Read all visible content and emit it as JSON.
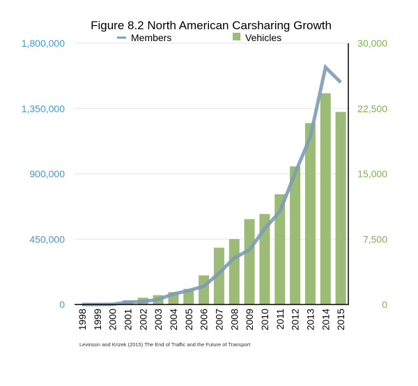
{
  "chart_data": {
    "type": "bar+line",
    "title": "Figure 8.2 North American Carsharing Growth",
    "categories": [
      "1998",
      "1999",
      "2000",
      "2001",
      "2002",
      "2003",
      "2004",
      "2005",
      "2006",
      "2007",
      "2008",
      "2009",
      "2010",
      "2011",
      "2012",
      "2013",
      "2014",
      "2015"
    ],
    "series": [
      {
        "name": "Members",
        "type": "line",
        "axis": "left",
        "color": "#7f9bb8",
        "values": [
          0,
          0,
          1000,
          16000,
          20000,
          35000,
          72000,
          96000,
          125000,
          216000,
          320000,
          377000,
          521000,
          641000,
          905000,
          1153000,
          1634000,
          1530000
        ]
      },
      {
        "name": "Vehicles",
        "type": "bar",
        "axis": "right",
        "color": "#9bbb76",
        "values": [
          0,
          0,
          0,
          480,
          780,
          1070,
          1420,
          1790,
          3340,
          6520,
          7510,
          9800,
          10390,
          12660,
          15860,
          20830,
          24250,
          22110
        ]
      }
    ],
    "left_axis": {
      "ylim": [
        0,
        1800000
      ],
      "ticks": [
        "0",
        "450,000",
        "900,000",
        "1,350,000",
        "1,800,000"
      ],
      "tick_values": [
        0,
        450000,
        900000,
        1350000,
        1800000
      ],
      "color": "#3d9bd6"
    },
    "right_axis": {
      "ylim": [
        0,
        30000
      ],
      "ticks": [
        "0",
        "7,500",
        "15,000",
        "22,500",
        "30,000"
      ],
      "tick_values": [
        0,
        7500,
        15000,
        22500,
        30000
      ],
      "color": "#7ab648"
    },
    "legend": "top",
    "grid": true,
    "source_note": "Levinson and Krizek (2015) The End of Traffic and the Future of Transport"
  }
}
